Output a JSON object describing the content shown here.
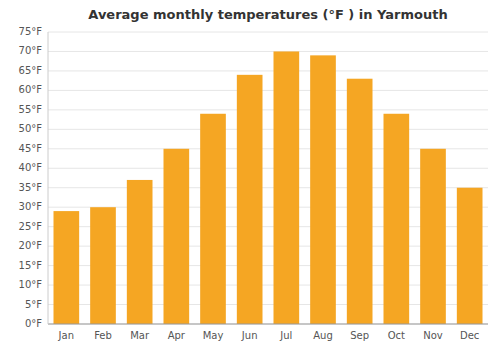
{
  "chart_data": {
    "type": "bar",
    "title": "Average monthly temperatures (°F ) in Yarmouth",
    "categories": [
      "Jan",
      "Feb",
      "Mar",
      "Apr",
      "May",
      "Jun",
      "Jul",
      "Aug",
      "Sep",
      "Oct",
      "Nov",
      "Dec"
    ],
    "values": [
      29,
      30,
      37,
      45,
      54,
      64,
      70,
      69,
      63,
      54,
      45,
      35
    ],
    "color": "#F5A623",
    "ylim": [
      0,
      75
    ],
    "yticks": [
      {
        "value": 0,
        "label": "0°F"
      },
      {
        "value": 5,
        "label": "5°F"
      },
      {
        "value": 10,
        "label": "10°F"
      },
      {
        "value": 15,
        "label": "15°F"
      },
      {
        "value": 20,
        "label": "20°F"
      },
      {
        "value": 25,
        "label": "25°F"
      },
      {
        "value": 30,
        "label": "30°F"
      },
      {
        "value": 35,
        "label": "35°F"
      },
      {
        "value": 40,
        "label": "40°F"
      },
      {
        "value": 45,
        "label": "45°F"
      },
      {
        "value": 50,
        "label": "50°F"
      },
      {
        "value": 55,
        "label": "55°F"
      },
      {
        "value": 60,
        "label": "60°F"
      },
      {
        "value": 65,
        "label": "65°F"
      },
      {
        "value": 70,
        "label": "70°F"
      },
      {
        "value": 75,
        "label": "75°F"
      }
    ],
    "grid": true
  }
}
